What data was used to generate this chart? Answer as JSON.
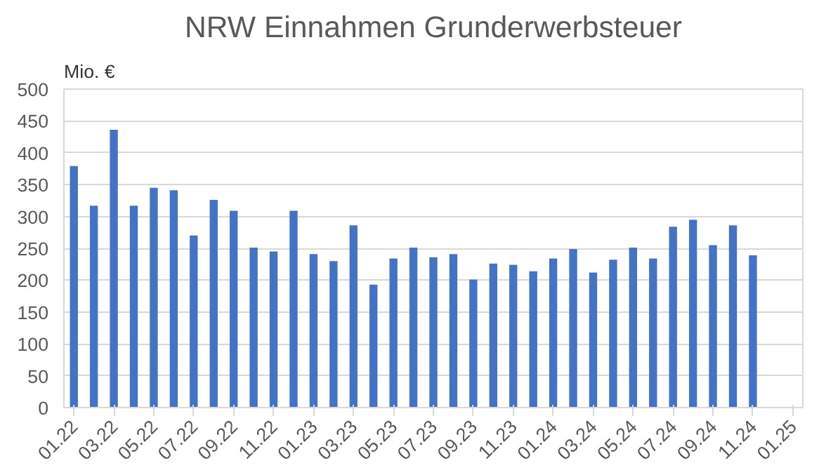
{
  "chart_data": {
    "type": "bar",
    "title": "NRW Einnahmen Grunderwerbsteuer",
    "ylabel": "Mio. €",
    "categories": [
      "01.22",
      null,
      "03.22",
      null,
      "05.22",
      null,
      "07.22",
      null,
      "09.22",
      null,
      "11.22",
      null,
      "01.23",
      null,
      "03.23",
      null,
      "05.23",
      null,
      "07.23",
      null,
      "09.23",
      null,
      "11.23",
      null,
      "01.24",
      null,
      "03.24",
      null,
      "05.24",
      null,
      "07.24",
      null,
      "09.24",
      null,
      "11.24",
      null,
      "01.25"
    ],
    "values": [
      379,
      317,
      436,
      317,
      345,
      341,
      270,
      326,
      309,
      251,
      245,
      309,
      241,
      230,
      286,
      193,
      234,
      251,
      236,
      241,
      201,
      226,
      224,
      214,
      234,
      249,
      212,
      232,
      251,
      234,
      284,
      295,
      255,
      286,
      239,
      null,
      null
    ],
    "color": "#4472c4",
    "ylim": [
      0,
      500
    ],
    "yticks": [
      0,
      50,
      100,
      150,
      200,
      250,
      300,
      350,
      400,
      450,
      500
    ],
    "grid": "y"
  }
}
